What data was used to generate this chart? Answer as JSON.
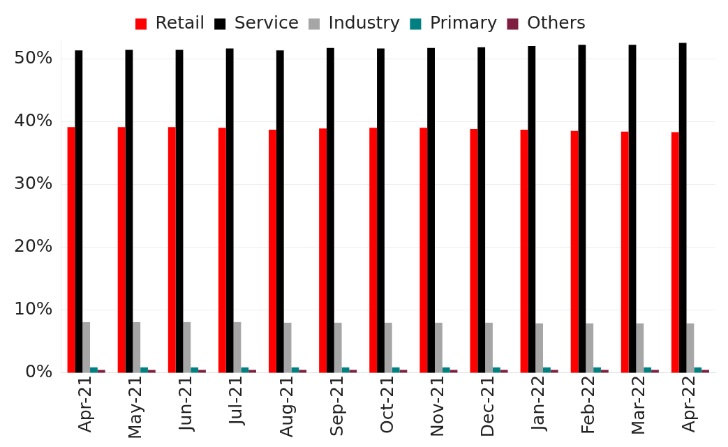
{
  "chart_data": {
    "type": "bar",
    "categories": [
      "Apr-21",
      "May-21",
      "Jun-21",
      "Jul-21",
      "Aug-21",
      "Sep-21",
      "Oct-21",
      "Nov-21",
      "Dec-21",
      "Jan-22",
      "Feb-22",
      "Mar-22",
      "Apr-22"
    ],
    "series": [
      {
        "name": "Retail",
        "color": "#ff0000",
        "values": [
          39.1,
          39.1,
          39.1,
          39.0,
          38.7,
          38.9,
          39.0,
          39.0,
          38.8,
          38.7,
          38.5,
          38.4,
          38.3
        ]
      },
      {
        "name": "Service",
        "color": "#000000",
        "values": [
          51.3,
          51.4,
          51.4,
          51.6,
          51.3,
          51.7,
          51.6,
          51.7,
          51.8,
          52.0,
          52.2,
          52.2,
          52.5
        ]
      },
      {
        "name": "Industry",
        "color": "#a6a6a6",
        "values": [
          8.1,
          8.1,
          8.1,
          8.1,
          8.0,
          8.0,
          8.0,
          8.0,
          8.0,
          7.9,
          7.9,
          7.9,
          7.9
        ]
      },
      {
        "name": "Primary",
        "color": "#008080",
        "values": [
          0.9,
          0.9,
          0.9,
          0.9,
          0.9,
          0.9,
          0.9,
          0.9,
          0.9,
          0.9,
          0.9,
          0.9,
          0.9
        ]
      },
      {
        "name": "Others",
        "color": "#7f1f3f",
        "values": [
          0.5,
          0.5,
          0.5,
          0.5,
          0.5,
          0.5,
          0.5,
          0.5,
          0.5,
          0.5,
          0.5,
          0.5,
          0.5
        ]
      }
    ],
    "ylim": [
      0,
      53
    ],
    "yticks": [
      {
        "value": 0,
        "label": "0%"
      },
      {
        "value": 10,
        "label": "10%"
      },
      {
        "value": 20,
        "label": "20%"
      },
      {
        "value": 30,
        "label": "30%"
      },
      {
        "value": 40,
        "label": "40%"
      },
      {
        "value": 50,
        "label": "50%"
      }
    ],
    "grid": "y",
    "legend": "top"
  }
}
